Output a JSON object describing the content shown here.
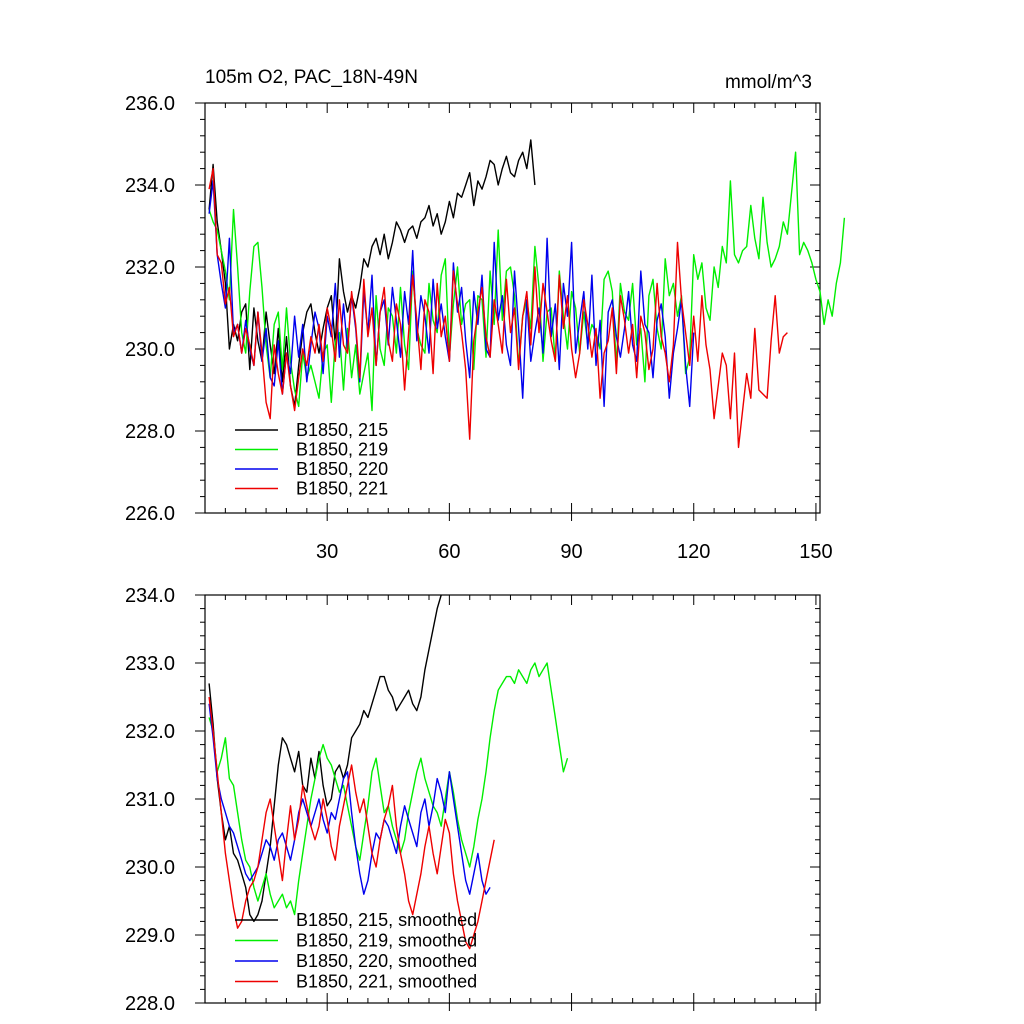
{
  "chart_data": [
    {
      "type": "line",
      "title": "105m O2, PAC_18N-49N",
      "units": "mmol/m^3",
      "xlim": [
        0,
        151
      ],
      "ylim": [
        226.0,
        236.0
      ],
      "yticks": [
        "226.0",
        "228.0",
        "230.0",
        "232.0",
        "234.0",
        "236.0"
      ],
      "xticks": [
        "30",
        "60",
        "90",
        "120",
        "150"
      ],
      "series": [
        {
          "name": "B1850, 215",
          "color": "#000000",
          "values": [
            233.4,
            234.5,
            233.1,
            232.4,
            231.6,
            230.0,
            230.6,
            230.2,
            230.9,
            231.1,
            229.5,
            231.0,
            230.2,
            229.7,
            230.9,
            230.1,
            229.4,
            230.5,
            229.2,
            230.3,
            229.1,
            228.6,
            229.6,
            230.4,
            230.9,
            231.1,
            230.4,
            229.9,
            230.5,
            231.0,
            231.3,
            230.1,
            232.2,
            231.4,
            230.9,
            231.3,
            231.0,
            231.5,
            232.2,
            232.0,
            232.5,
            232.7,
            232.3,
            232.8,
            232.2,
            232.6,
            233.1,
            232.9,
            232.6,
            232.9,
            233.0,
            232.7,
            233.1,
            233.2,
            233.5,
            233.0,
            233.3,
            232.8,
            233.1,
            233.6,
            233.2,
            233.8,
            233.7,
            234.0,
            234.3,
            233.5,
            234.1,
            233.9,
            234.2,
            234.6,
            234.5,
            234.0,
            234.4,
            234.7,
            234.3,
            234.2,
            234.6,
            234.8,
            234.4,
            235.1,
            234.0
          ]
        },
        {
          "name": "B1850, 219",
          "color": "#00ee00",
          "values": [
            233.4,
            233.1,
            232.9,
            232.4,
            231.9,
            231.2,
            233.4,
            232.0,
            230.4,
            229.9,
            231.4,
            232.5,
            232.6,
            231.5,
            230.1,
            229.3,
            230.6,
            230.9,
            229.5,
            231.0,
            229.7,
            229.0,
            228.6,
            229.9,
            229.3,
            229.6,
            229.2,
            228.8,
            229.9,
            230.1,
            228.7,
            230.2,
            230.4,
            229.0,
            230.5,
            229.3,
            230.1,
            228.9,
            229.4,
            229.9,
            228.5,
            231.3,
            230.0,
            229.6,
            231.0,
            230.8,
            229.9,
            231.5,
            230.1,
            229.5,
            231.9,
            230.5,
            230.1,
            229.9,
            231.6,
            230.7,
            230.4,
            231.8,
            232.2,
            229.8,
            231.1,
            232.0,
            230.6,
            231.1,
            231.2,
            229.5,
            231.3,
            231.2,
            229.8,
            231.9,
            230.6,
            232.9,
            230.7,
            231.9,
            232.0,
            231.3,
            229.6,
            230.8,
            231.2,
            230.5,
            232.5,
            231.5,
            229.7,
            230.9,
            231.0,
            229.7,
            231.9,
            230.8,
            230.0,
            231.4,
            231.0,
            229.9,
            230.9,
            230.1,
            230.6,
            230.4,
            230.0,
            231.7,
            231.9,
            231.4,
            229.6,
            231.6,
            230.9,
            230.7,
            231.6,
            230.1,
            230.5,
            229.2,
            231.3,
            231.7,
            230.5,
            230.0,
            232.2,
            231.3,
            231.6,
            230.8,
            231.3,
            229.4,
            229.8,
            232.3,
            231.7,
            232.1,
            231.0,
            230.7,
            232.0,
            231.5,
            232.5,
            232.1,
            234.1,
            232.3,
            232.1,
            232.4,
            232.5,
            233.5,
            232.7,
            232.2,
            233.7,
            232.6,
            232.0,
            232.2,
            232.5,
            233.1,
            232.8,
            233.8,
            234.8,
            232.3,
            232.6,
            232.4,
            232.1,
            231.7,
            231.4,
            230.6,
            231.2,
            230.8,
            231.6,
            232.1,
            233.2
          ]
        },
        {
          "name": "B1850, 220",
          "color": "#0000ee",
          "values": [
            233.3,
            234.1,
            232.3,
            231.6,
            231.0,
            232.7,
            230.4,
            230.6,
            229.9,
            230.7,
            230.0,
            229.6,
            230.9,
            229.7,
            230.5,
            229.3,
            229.1,
            230.2,
            228.9,
            229.9,
            229.4,
            230.8,
            229.8,
            230.6,
            229.2,
            230.1,
            230.9,
            230.5,
            229.4,
            230.8,
            230.3,
            231.6,
            229.8,
            231.1,
            230.0,
            231.3,
            230.5,
            229.2,
            231.4,
            230.4,
            231.8,
            229.6,
            230.9,
            231.2,
            230.1,
            231.5,
            230.7,
            229.8,
            231.4,
            230.6,
            232.4,
            230.2,
            231.3,
            230.8,
            229.9,
            231.7,
            230.5,
            231.1,
            230.3,
            229.7,
            232.1,
            230.9,
            231.5,
            230.2,
            229.3,
            231.4,
            230.6,
            231.8,
            230.0,
            229.8,
            232.6,
            230.7,
            231.3,
            230.1,
            229.6,
            231.9,
            230.5,
            228.8,
            231.2,
            229.7,
            230.4,
            231.0,
            229.9,
            232.7,
            230.3,
            231.1,
            229.5,
            231.6,
            230.8,
            232.6,
            229.9,
            230.7,
            231.4,
            230.0,
            231.8,
            229.6,
            230.7,
            228.6,
            230.9,
            231.2,
            230.3,
            229.8,
            230.5,
            231.4,
            230.1,
            229.7,
            231.9,
            230.6,
            230.4,
            229.3,
            230.7,
            231.1,
            230.3,
            228.8,
            229.9,
            230.5,
            231.2,
            229.6,
            228.6,
            230.4
          ]
        },
        {
          "name": "B1850, 221",
          "color": "#ee0000",
          "values": [
            233.9,
            234.4,
            232.3,
            232.1,
            231.1,
            231.5,
            230.3,
            230.6,
            229.9,
            230.5,
            230.1,
            229.6,
            230.9,
            229.9,
            228.7,
            228.3,
            230.1,
            229.4,
            228.9,
            229.9,
            229.1,
            228.5,
            229.3,
            230.0,
            229.6,
            230.3,
            229.9,
            230.6,
            229.7,
            231.0,
            230.5,
            229.7,
            231.2,
            230.1,
            229.9,
            231.4,
            230.6,
            229.3,
            231.7,
            230.3,
            231.0,
            229.6,
            230.9,
            231.5,
            230.2,
            229.7,
            231.1,
            230.6,
            229.0,
            230.4,
            231.8,
            230.7,
            229.5,
            231.2,
            230.9,
            229.4,
            231.6,
            230.3,
            230.8,
            229.7,
            231.9,
            231.1,
            230.4,
            229.5,
            227.8,
            230.2,
            230.9,
            231.5,
            230.3,
            229.8,
            231.2,
            230.6,
            229.9,
            231.7,
            230.4,
            231.0,
            229.5,
            230.8,
            231.4,
            230.1,
            232.0,
            230.4,
            231.6,
            230.9,
            230.2,
            229.7,
            231.8,
            230.5,
            231.3,
            230.0,
            229.3,
            229.9,
            231.2,
            230.6,
            229.8,
            230.5,
            228.8,
            229.9,
            230.2,
            231.0,
            229.4,
            231.3,
            230.7,
            229.9,
            230.6,
            229.3,
            230.8,
            230.4,
            229.5,
            230.0,
            231.6,
            230.3,
            229.9,
            229.2,
            230.1,
            232.6,
            231.2,
            230.4,
            229.6,
            230.8,
            229.7,
            231.3,
            230.1,
            229.5,
            228.3,
            229.1,
            229.9,
            229.6,
            228.3,
            229.9,
            227.6,
            228.5,
            229.4,
            228.8,
            230.5,
            229.0,
            228.9,
            228.8,
            230.2,
            231.3,
            229.9,
            230.3,
            230.4
          ]
        }
      ],
      "legend": [
        "B1850, 215",
        "B1850, 219",
        "B1850, 220",
        "B1850, 221"
      ],
      "legend_position": "bottom-left"
    },
    {
      "type": "line",
      "title": "",
      "xlim": [
        0,
        151
      ],
      "ylim": [
        228.0,
        234.0
      ],
      "yticks": [
        "228.0",
        "229.0",
        "230.0",
        "231.0",
        "232.0",
        "233.0",
        "234.0"
      ],
      "series": [
        {
          "name": "B1850, 215, smoothed",
          "color": "#000000",
          "values": [
            232.7,
            232.1,
            231.3,
            230.8,
            230.4,
            230.6,
            230.2,
            230.1,
            229.9,
            229.7,
            229.3,
            229.2,
            229.3,
            229.5,
            229.9,
            230.3,
            230.9,
            231.5,
            231.9,
            231.8,
            231.6,
            231.4,
            231.7,
            231.2,
            231.1,
            231.6,
            231.3,
            231.7,
            231.2,
            230.9,
            231.0,
            231.4,
            231.5,
            231.3,
            231.5,
            231.9,
            232.0,
            232.1,
            232.3,
            232.2,
            232.4,
            232.6,
            232.8,
            232.8,
            232.6,
            232.5,
            232.3,
            232.4,
            232.5,
            232.6,
            232.4,
            232.3,
            232.5,
            232.9,
            233.2,
            233.5,
            233.8,
            234.0
          ]
        },
        {
          "name": "B1850, 219, smoothed",
          "color": "#00ee00",
          "values": [
            232.2,
            232.0,
            231.4,
            231.6,
            231.9,
            231.3,
            231.2,
            230.8,
            230.4,
            230.1,
            230.0,
            229.7,
            229.5,
            229.7,
            229.9,
            229.6,
            229.4,
            229.5,
            229.6,
            229.4,
            229.5,
            229.3,
            229.8,
            230.2,
            230.6,
            231.0,
            231.3,
            231.6,
            231.8,
            231.6,
            231.5,
            231.3,
            231.1,
            231.2,
            230.9,
            230.6,
            230.3,
            230.1,
            230.5,
            230.9,
            231.4,
            231.6,
            231.2,
            230.8,
            230.9,
            230.6,
            230.4,
            230.2,
            230.4,
            230.8,
            231.1,
            231.4,
            231.6,
            231.3,
            231.1,
            230.9,
            230.8,
            230.6,
            231.0,
            231.4,
            231.1,
            230.7,
            230.4,
            230.2,
            230.0,
            230.3,
            230.7,
            231.0,
            231.4,
            231.9,
            232.3,
            232.6,
            232.7,
            232.8,
            232.8,
            232.7,
            232.9,
            232.8,
            232.7,
            232.9,
            233.0,
            232.8,
            232.9,
            233.0,
            232.6,
            232.2,
            231.8,
            231.4,
            231.6
          ]
        },
        {
          "name": "B1850, 220, smoothed",
          "color": "#0000ee",
          "values": [
            232.4,
            231.9,
            231.3,
            231.0,
            230.8,
            230.6,
            230.5,
            230.3,
            230.1,
            229.9,
            229.8,
            229.9,
            230.0,
            230.2,
            230.4,
            230.3,
            230.1,
            230.4,
            230.5,
            230.3,
            230.1,
            230.4,
            230.8,
            231.0,
            230.8,
            230.6,
            230.8,
            231.0,
            230.7,
            230.5,
            230.8,
            230.7,
            231.0,
            231.3,
            231.4,
            230.8,
            230.3,
            229.9,
            229.6,
            229.8,
            230.2,
            230.5,
            230.4,
            230.7,
            230.6,
            230.4,
            230.2,
            230.6,
            230.9,
            230.7,
            230.5,
            230.3,
            230.8,
            231.0,
            230.6,
            230.9,
            231.3,
            231.1,
            230.8,
            231.4,
            231.0,
            230.6,
            230.2,
            229.8,
            229.6,
            229.9,
            230.2,
            229.8,
            229.6,
            229.7
          ]
        },
        {
          "name": "B1850, 221, smoothed",
          "color": "#ee0000",
          "values": [
            232.5,
            232.0,
            231.4,
            230.8,
            230.2,
            229.8,
            229.4,
            229.1,
            229.2,
            229.5,
            229.7,
            229.8,
            230.0,
            230.4,
            230.8,
            231.0,
            230.6,
            230.2,
            229.8,
            230.4,
            230.9,
            230.4,
            230.7,
            231.2,
            230.9,
            230.6,
            230.4,
            230.6,
            231.0,
            230.7,
            230.3,
            230.1,
            230.6,
            230.9,
            231.2,
            231.5,
            231.1,
            230.8,
            231.0,
            230.6,
            230.2,
            230.0,
            230.4,
            230.7,
            230.9,
            231.2,
            230.6,
            230.2,
            229.9,
            229.5,
            229.3,
            229.6,
            229.9,
            230.3,
            230.6,
            230.2,
            229.9,
            230.3,
            230.7,
            230.5,
            229.9,
            229.5,
            229.2,
            228.9,
            228.8,
            229.0,
            229.2,
            229.5,
            229.8,
            230.1,
            230.4
          ]
        }
      ],
      "legend": [
        "B1850, 215, smoothed",
        "B1850, 219, smoothed",
        "B1850, 220, smoothed",
        "B1850, 221, smoothed"
      ],
      "legend_position": "bottom-left"
    }
  ]
}
